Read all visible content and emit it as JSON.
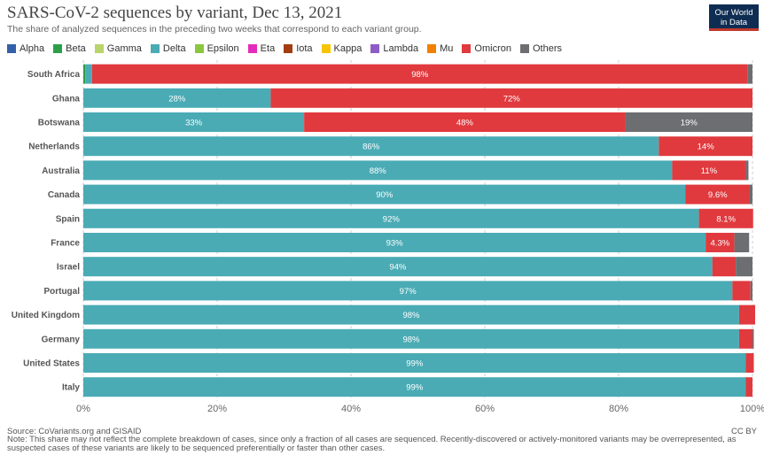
{
  "header": {
    "title": "SARS-CoV-2 sequences by variant, Dec 13, 2021",
    "subtitle": "The share of analyzed sequences in the preceding two weeks that correspond to each variant group.",
    "logo_line1": "Our World",
    "logo_line2": "in Data"
  },
  "legend": [
    {
      "label": "Alpha",
      "color": "#3360a9"
    },
    {
      "label": "Beta",
      "color": "#2ca048"
    },
    {
      "label": "Gamma",
      "color": "#b8d46a"
    },
    {
      "label": "Delta",
      "color": "#4aabb5"
    },
    {
      "label": "Epsilon",
      "color": "#8cc63f"
    },
    {
      "label": "Eta",
      "color": "#e32bbd"
    },
    {
      "label": "Iota",
      "color": "#a23d12"
    },
    {
      "label": "Kappa",
      "color": "#f6c500"
    },
    {
      "label": "Lambda",
      "color": "#8e5cc8"
    },
    {
      "label": "Mu",
      "color": "#f08200"
    },
    {
      "label": "Omicron",
      "color": "#e03a3e"
    },
    {
      "label": "Others",
      "color": "#6d6e71"
    }
  ],
  "chart_data": {
    "type": "bar",
    "orientation": "horizontal",
    "stacked": true,
    "categories": [
      "South Africa",
      "Ghana",
      "Botswana",
      "Netherlands",
      "Australia",
      "Canada",
      "Spain",
      "France",
      "Israel",
      "Portugal",
      "United Kingdom",
      "Germany",
      "United States",
      "Italy"
    ],
    "series": [
      {
        "name": "Beta",
        "values": [
          0.3,
          0,
          0,
          0,
          0,
          0,
          0,
          0,
          0,
          0,
          0,
          0,
          0,
          0
        ]
      },
      {
        "name": "Delta",
        "values": [
          1,
          28,
          33,
          86,
          88,
          90,
          92,
          93,
          94,
          97,
          98,
          98,
          99,
          99
        ]
      },
      {
        "name": "Omicron",
        "values": [
          98,
          72,
          48,
          14,
          11,
          9.6,
          8.1,
          4.3,
          3.5,
          2.7,
          2.4,
          2.0,
          1.2,
          1.0
        ]
      },
      {
        "name": "Others",
        "values": [
          0.7,
          0,
          19,
          0,
          0.4,
          0.4,
          0,
          2.2,
          2.5,
          0.3,
          0,
          0.2,
          0,
          0
        ]
      }
    ],
    "data_labels": [
      {
        "category": "South Africa",
        "series": "Omicron",
        "text": "98%"
      },
      {
        "category": "Ghana",
        "series": "Delta",
        "text": "28%"
      },
      {
        "category": "Ghana",
        "series": "Omicron",
        "text": "72%"
      },
      {
        "category": "Botswana",
        "series": "Delta",
        "text": "33%"
      },
      {
        "category": "Botswana",
        "series": "Omicron",
        "text": "48%"
      },
      {
        "category": "Botswana",
        "series": "Others",
        "text": "19%"
      },
      {
        "category": "Netherlands",
        "series": "Delta",
        "text": "86%"
      },
      {
        "category": "Netherlands",
        "series": "Omicron",
        "text": "14%"
      },
      {
        "category": "Australia",
        "series": "Delta",
        "text": "88%"
      },
      {
        "category": "Australia",
        "series": "Omicron",
        "text": "11%"
      },
      {
        "category": "Canada",
        "series": "Delta",
        "text": "90%"
      },
      {
        "category": "Canada",
        "series": "Omicron",
        "text": "9.6%"
      },
      {
        "category": "Spain",
        "series": "Delta",
        "text": "92%"
      },
      {
        "category": "Spain",
        "series": "Omicron",
        "text": "8.1%"
      },
      {
        "category": "France",
        "series": "Delta",
        "text": "93%"
      },
      {
        "category": "France",
        "series": "Omicron",
        "text": "4.3%"
      },
      {
        "category": "Israel",
        "series": "Delta",
        "text": "94%"
      },
      {
        "category": "Portugal",
        "series": "Delta",
        "text": "97%"
      },
      {
        "category": "United Kingdom",
        "series": "Delta",
        "text": "98%"
      },
      {
        "category": "Germany",
        "series": "Delta",
        "text": "98%"
      },
      {
        "category": "United States",
        "series": "Delta",
        "text": "99%"
      },
      {
        "category": "Italy",
        "series": "Delta",
        "text": "99%"
      }
    ],
    "x_ticks": [
      "0%",
      "20%",
      "40%",
      "60%",
      "80%",
      "100%"
    ],
    "xlim": [
      0,
      100
    ],
    "grid": true,
    "legend_position": "top"
  },
  "footer": {
    "source": "Source: CoVariants.org and GISAID",
    "license": "CC BY",
    "note": "Note: This share may not reflect the complete breakdown of cases, since only a fraction of all cases are sequenced. Recently-discovered or actively-monitored variants may be overrepresented, as suspected cases of these variants are likely to be sequenced preferentially or faster than other cases."
  }
}
